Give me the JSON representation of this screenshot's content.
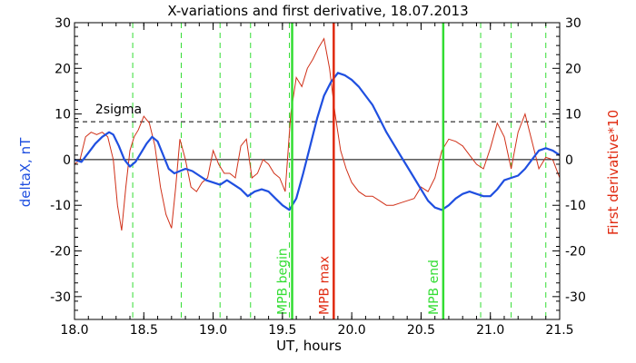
{
  "chart_data": {
    "type": "line",
    "title": "X-variations and first derivative, 18.07.2013",
    "xlabel": "UT, hours",
    "ylabel_left": "deltaX, nT",
    "ylabel_right": "First derivative*10",
    "xlim": [
      18.0,
      21.5
    ],
    "ylim": [
      -35,
      30
    ],
    "x_ticks": [
      "18.0",
      "18.5",
      "19.0",
      "19.5",
      "20.0",
      "20.5",
      "21.0",
      "21.5"
    ],
    "x_tick_values": [
      18.0,
      18.5,
      19.0,
      19.5,
      20.0,
      20.5,
      21.0,
      21.5
    ],
    "y_ticks": [
      "-30",
      "-20",
      "-10",
      "0",
      "10",
      "20",
      "30"
    ],
    "y_tick_values": [
      -30,
      -20,
      -10,
      0,
      10,
      20,
      30
    ],
    "colors": {
      "deltaX": "#1f4fe0",
      "derivative": "#d03018",
      "marker_green": "#33dd33",
      "marker_red": "#e02a10",
      "right_axis_label": "#e02a10",
      "left_axis_label": "#1f4fe0"
    },
    "threshold": {
      "label": "2sigma",
      "value": 8.3
    },
    "zero_line": 0,
    "dashed_green_lines": [
      18.42,
      18.77,
      19.05,
      19.27,
      19.55,
      20.93,
      21.15,
      21.4
    ],
    "markers": [
      {
        "label": "MPB begin",
        "x": 19.57,
        "color": "green"
      },
      {
        "label": "MPB max",
        "x": 19.87,
        "color": "red"
      },
      {
        "label": "MPB end",
        "x": 20.66,
        "color": "green"
      }
    ],
    "series": [
      {
        "name": "deltaX, nT",
        "x": [
          18.0,
          18.05,
          18.1,
          18.15,
          18.2,
          18.25,
          18.28,
          18.32,
          18.36,
          18.4,
          18.44,
          18.48,
          18.52,
          18.56,
          18.6,
          18.64,
          18.68,
          18.72,
          18.76,
          18.8,
          18.85,
          18.9,
          18.95,
          19.0,
          19.05,
          19.1,
          19.15,
          19.2,
          19.25,
          19.3,
          19.35,
          19.4,
          19.45,
          19.5,
          19.55,
          19.6,
          19.65,
          19.7,
          19.75,
          19.8,
          19.85,
          19.9,
          19.95,
          20.0,
          20.05,
          20.1,
          20.15,
          20.2,
          20.25,
          20.3,
          20.35,
          20.4,
          20.45,
          20.5,
          20.55,
          20.6,
          20.65,
          20.7,
          20.75,
          20.8,
          20.85,
          20.9,
          20.95,
          21.0,
          21.05,
          21.1,
          21.15,
          21.2,
          21.25,
          21.3,
          21.35,
          21.4,
          21.45,
          21.5
        ],
        "y": [
          0.0,
          -0.5,
          1.5,
          3.5,
          5.0,
          6.0,
          5.5,
          3.0,
          0.0,
          -1.5,
          -0.5,
          1.5,
          3.5,
          5.0,
          4.0,
          1.0,
          -2.0,
          -3.0,
          -2.5,
          -2.0,
          -2.5,
          -3.5,
          -4.5,
          -5.0,
          -5.5,
          -4.5,
          -5.5,
          -6.5,
          -8.0,
          -7.0,
          -6.5,
          -7.0,
          -8.5,
          -10.0,
          -11.0,
          -8.5,
          -3.0,
          3.0,
          9.0,
          14.0,
          17.0,
          19.0,
          18.5,
          17.5,
          16.0,
          14.0,
          12.0,
          9.0,
          6.0,
          3.5,
          1.0,
          -1.5,
          -4.0,
          -6.5,
          -9.0,
          -10.5,
          -11.0,
          -10.0,
          -8.5,
          -7.5,
          -7.0,
          -7.5,
          -8.0,
          -8.0,
          -6.5,
          -4.5,
          -4.0,
          -3.5,
          -2.0,
          0.0,
          2.0,
          2.5,
          2.0,
          1.0
        ]
      },
      {
        "name": "First derivative*10",
        "x": [
          18.0,
          18.04,
          18.08,
          18.12,
          18.16,
          18.2,
          18.24,
          18.28,
          18.31,
          18.34,
          18.37,
          18.4,
          18.43,
          18.46,
          18.5,
          18.54,
          18.58,
          18.62,
          18.66,
          18.7,
          18.73,
          18.76,
          18.8,
          18.84,
          18.88,
          18.92,
          18.96,
          19.0,
          19.04,
          19.08,
          19.12,
          19.16,
          19.2,
          19.24,
          19.28,
          19.32,
          19.36,
          19.4,
          19.44,
          19.48,
          19.52,
          19.56,
          19.6,
          19.64,
          19.68,
          19.72,
          19.76,
          19.8,
          19.84,
          19.88,
          19.92,
          19.96,
          20.0,
          20.05,
          20.1,
          20.15,
          20.2,
          20.25,
          20.3,
          20.35,
          20.4,
          20.45,
          20.5,
          20.55,
          20.6,
          20.65,
          20.7,
          20.75,
          20.8,
          20.85,
          20.9,
          20.95,
          21.0,
          21.05,
          21.1,
          21.15,
          21.2,
          21.25,
          21.3,
          21.35,
          21.4,
          21.45,
          21.5
        ],
        "y": [
          -1.0,
          0.0,
          5.0,
          6.0,
          5.5,
          6.0,
          5.0,
          0.0,
          -10.0,
          -15.5,
          -6.0,
          2.0,
          5.0,
          6.5,
          9.5,
          8.0,
          3.0,
          -6.0,
          -12.0,
          -15.0,
          -6.0,
          4.5,
          0.0,
          -6.0,
          -7.0,
          -5.0,
          -4.0,
          2.0,
          -1.0,
          -3.0,
          -3.0,
          -4.0,
          3.0,
          4.5,
          -4.0,
          -3.0,
          0.0,
          -1.0,
          -3.0,
          -4.0,
          -7.0,
          10.0,
          18.0,
          16.0,
          20.0,
          22.0,
          24.5,
          26.5,
          20.0,
          10.0,
          2.0,
          -2.0,
          -5.0,
          -7.0,
          -8.0,
          -8.0,
          -9.0,
          -10.0,
          -10.0,
          -9.5,
          -9.0,
          -8.5,
          -6.0,
          -7.0,
          -4.0,
          2.0,
          4.5,
          4.0,
          3.0,
          1.0,
          -1.0,
          -2.0,
          2.5,
          8.0,
          5.0,
          -2.0,
          6.0,
          10.0,
          4.0,
          -2.0,
          0.5,
          0.0,
          -4.0
        ]
      }
    ]
  }
}
